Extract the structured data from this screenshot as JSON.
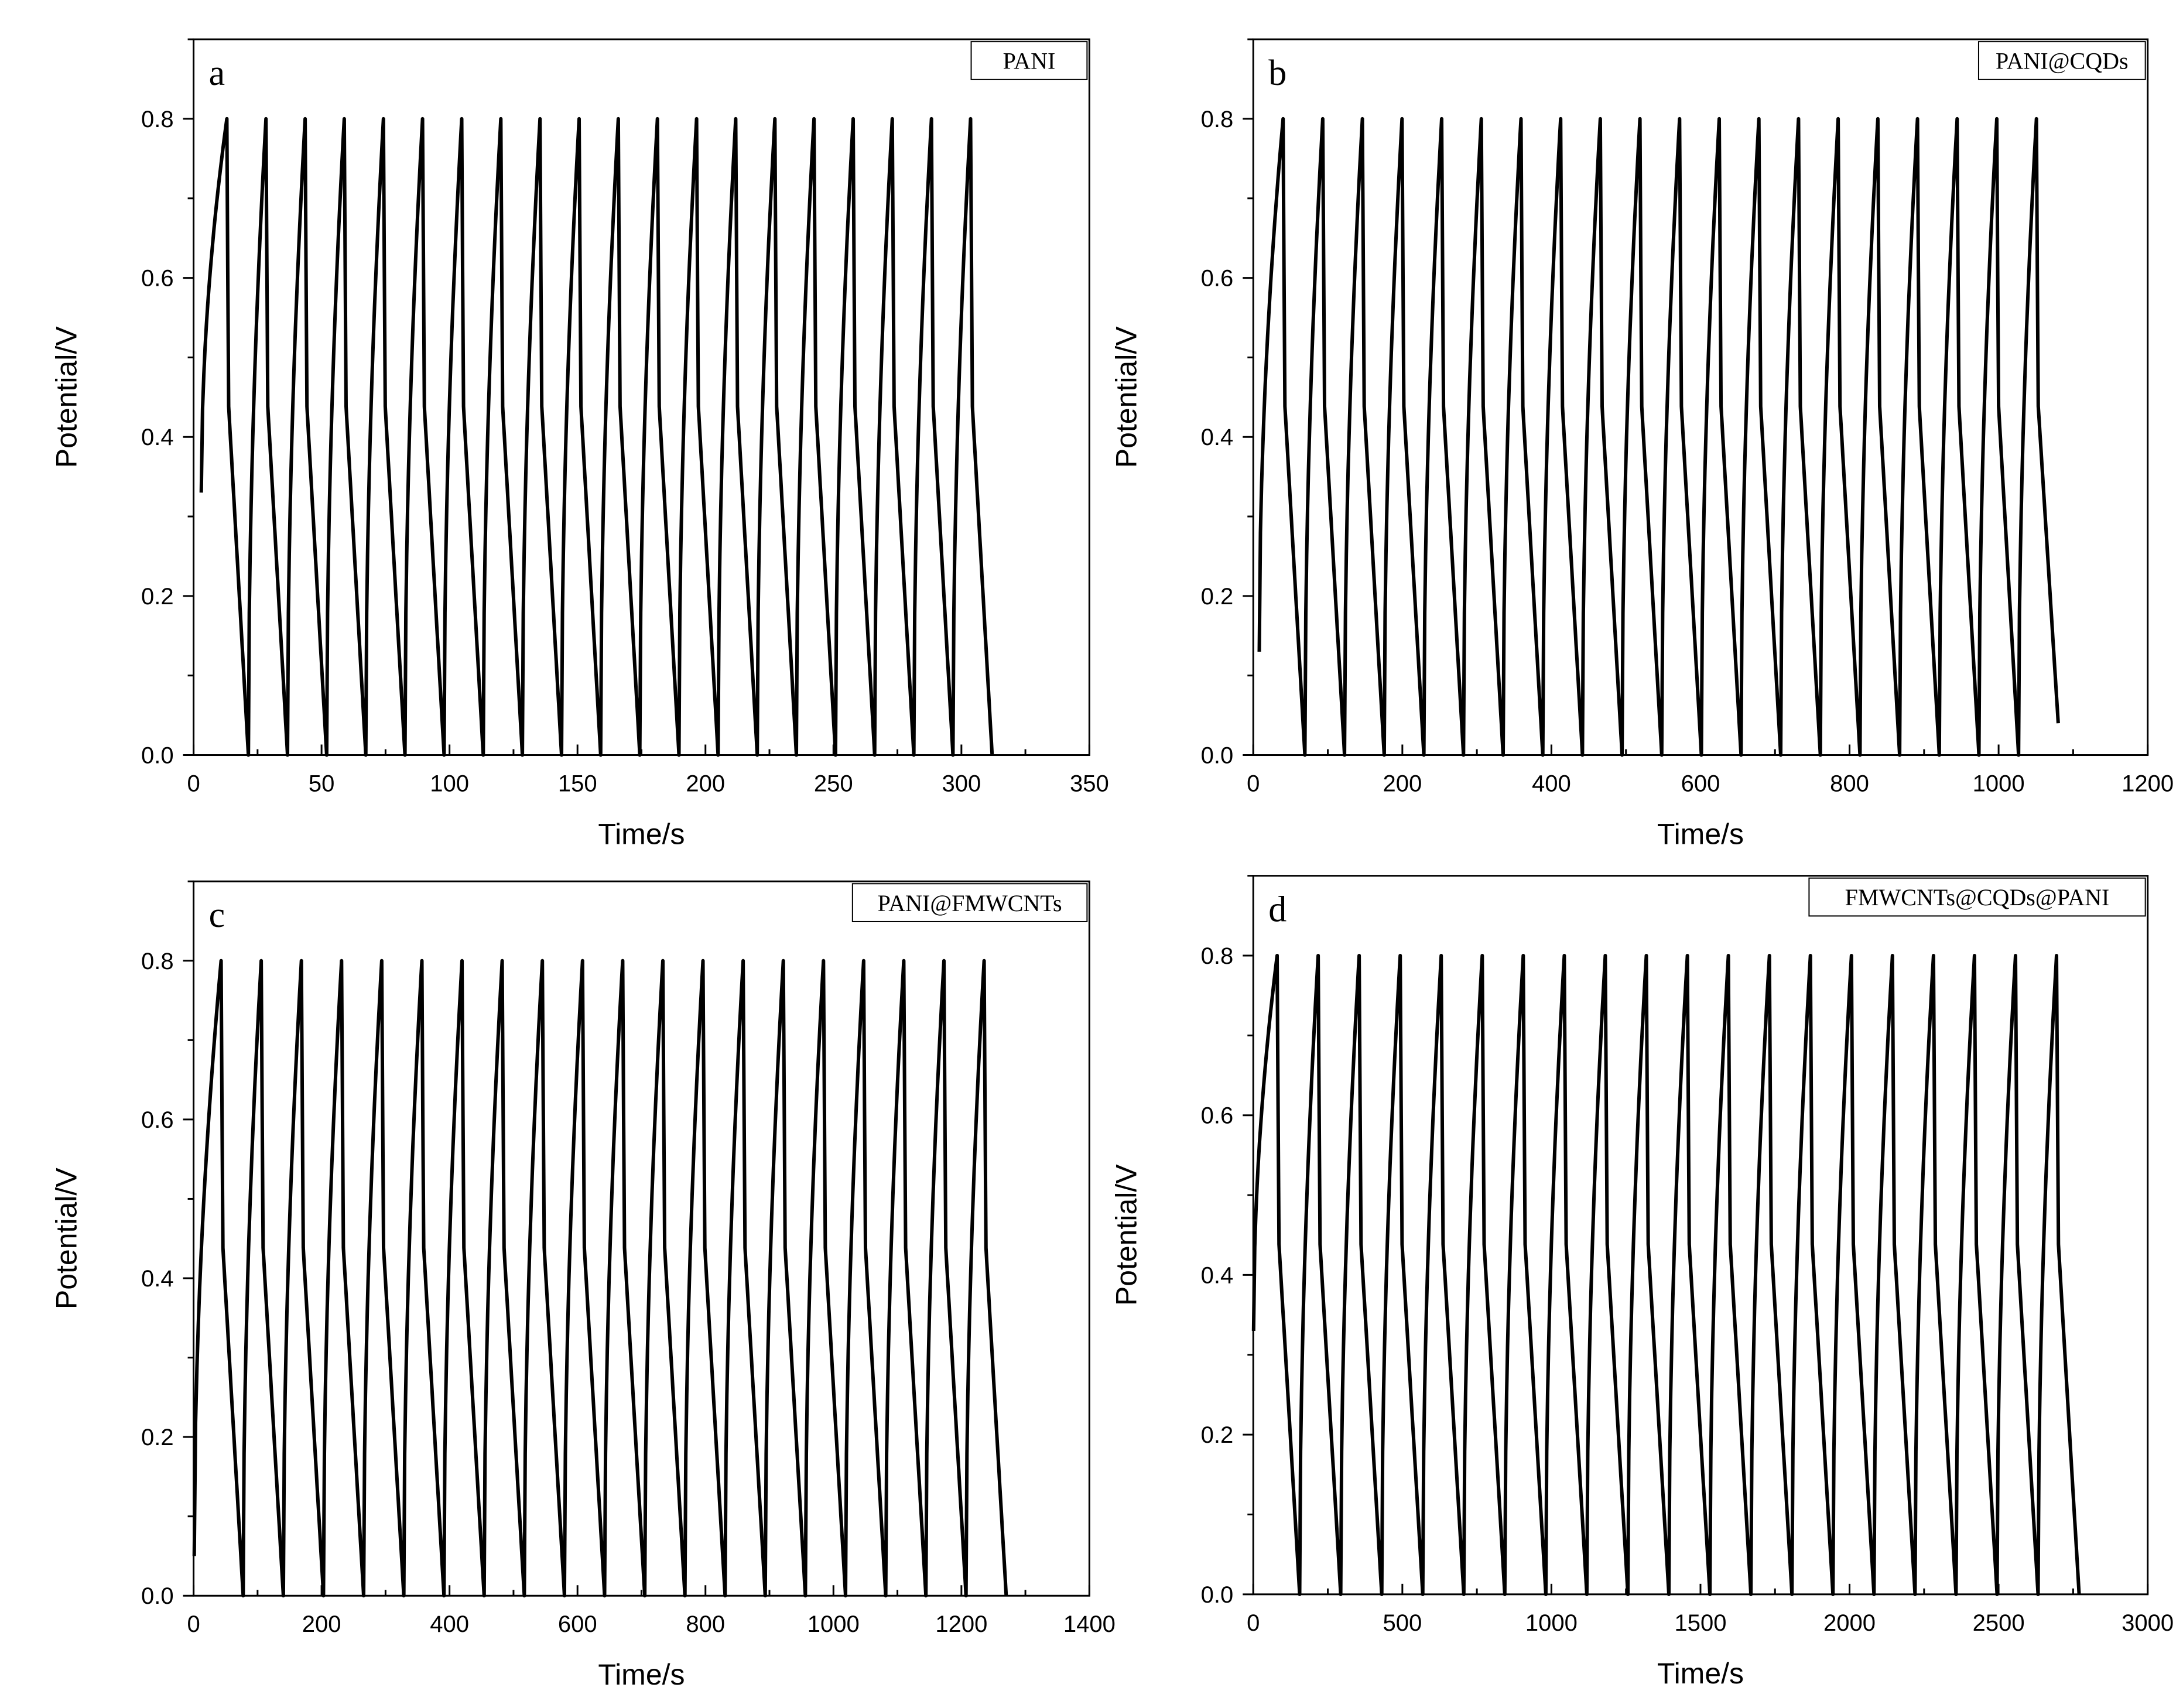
{
  "chart_data": [
    {
      "type": "line",
      "panel_letter": "a",
      "legend_label": "PANI",
      "xlabel": "Time/s",
      "ylabel": "Potential/V",
      "xlim": [
        0,
        350
      ],
      "ylim": [
        0,
        0.9
      ],
      "x_ticks": [
        "0",
        "50",
        "100",
        "150",
        "200",
        "250",
        "300",
        "350"
      ],
      "y_ticks": [
        "0.0",
        "0.2",
        "0.4",
        "0.6",
        "0.8"
      ],
      "series": [
        {
          "cycles": 20,
          "start_time": 3,
          "first_peak_time": 13,
          "end_time": 312,
          "start_potential": 0.33,
          "peak_potential": 0.8,
          "end_potential": 0.0,
          "charge_fraction": 0.45
        }
      ]
    },
    {
      "type": "line",
      "panel_letter": "b",
      "legend_label": "PANI@CQDs",
      "xlabel": "Time/s",
      "ylabel": "Potential/V",
      "xlim": [
        0,
        1200
      ],
      "ylim": [
        0,
        0.9
      ],
      "x_ticks": [
        "0",
        "200",
        "400",
        "600",
        "800",
        "1000",
        "1200"
      ],
      "y_ticks": [
        "0.0",
        "0.2",
        "0.4",
        "0.6",
        "0.8"
      ],
      "series": [
        {
          "cycles": 20,
          "start_time": 8,
          "first_peak_time": 40,
          "end_time": 1080,
          "start_potential": 0.13,
          "peak_potential": 0.8,
          "end_potential": 0.04,
          "charge_fraction": 0.45
        }
      ]
    },
    {
      "type": "line",
      "panel_letter": "c",
      "legend_label": "PANI@FMWCNTs",
      "xlabel": "Time/s",
      "ylabel": "Potential/V",
      "xlim": [
        0,
        1400
      ],
      "ylim": [
        0,
        0.9
      ],
      "x_ticks": [
        "0",
        "200",
        "400",
        "600",
        "800",
        "1000",
        "1200",
        "1400"
      ],
      "y_ticks": [
        "0.0",
        "0.2",
        "0.4",
        "0.6",
        "0.8"
      ],
      "series": [
        {
          "cycles": 20,
          "start_time": 1,
          "first_peak_time": 43,
          "end_time": 1270,
          "start_potential": 0.05,
          "peak_potential": 0.8,
          "end_potential": 0.0,
          "charge_fraction": 0.45
        }
      ]
    },
    {
      "type": "line",
      "panel_letter": "d",
      "legend_label": "FMWCNTs@CQDs@PANI",
      "xlabel": "Time/s",
      "ylabel": "Potential/V",
      "xlim": [
        0,
        3000
      ],
      "ylim": [
        0,
        0.9
      ],
      "x_ticks": [
        "0",
        "500",
        "1000",
        "1500",
        "2000",
        "2500",
        "3000"
      ],
      "y_ticks": [
        "0.0",
        "0.2",
        "0.4",
        "0.6",
        "0.8"
      ],
      "series": [
        {
          "cycles": 20,
          "start_time": 1,
          "first_peak_time": 80,
          "end_time": 2770,
          "start_potential": 0.33,
          "peak_potential": 0.8,
          "end_potential": 0.0,
          "charge_fraction": 0.45
        }
      ]
    }
  ]
}
